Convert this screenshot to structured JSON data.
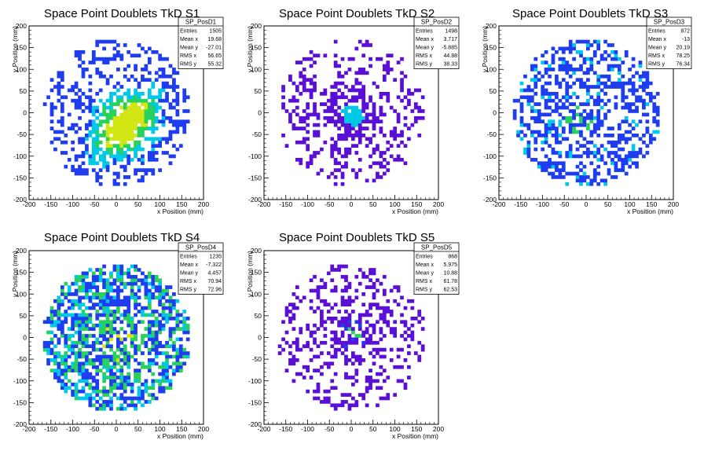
{
  "chart_data": [
    {
      "type": "heatmap",
      "title": "Space Point Doublets TkD S1",
      "xlabel": "x Position (mm)",
      "ylabel": "y Position (mm)",
      "xlim": [
        -200,
        200
      ],
      "ylim": [
        -200,
        200
      ],
      "xticks": [
        "-200",
        "-150",
        "-100",
        "-50",
        "0",
        "50",
        "100",
        "150",
        "200"
      ],
      "yticks": [
        "-200",
        "-150",
        "-100",
        "-50",
        "0",
        "50",
        "100",
        "150",
        "200"
      ],
      "pattern": "diagonal",
      "stats": {
        "name": "SP_PosD1",
        "rows": [
          [
            "Entries",
            "1505"
          ],
          [
            "Mean x",
            "19.68"
          ],
          [
            "Mean y",
            "-27.01"
          ],
          [
            "RMS x",
            "56.65"
          ],
          [
            "RMS y",
            "55.32"
          ]
        ]
      }
    },
    {
      "type": "heatmap",
      "title": "Space Point Doublets TkD S2",
      "xlabel": "x Position (mm)",
      "ylabel": "y Position (mm)",
      "xlim": [
        -200,
        200
      ],
      "ylim": [
        -200,
        200
      ],
      "xticks": [
        "-200",
        "-150",
        "-100",
        "-50",
        "0",
        "50",
        "100",
        "150",
        "200"
      ],
      "yticks": [
        "-200",
        "-150",
        "-100",
        "-50",
        "0",
        "50",
        "100",
        "150",
        "200"
      ],
      "pattern": "central",
      "stats": {
        "name": "SP_PosD2",
        "rows": [
          [
            "Entries",
            "1498"
          ],
          [
            "Mean x",
            "3.717"
          ],
          [
            "Mean y",
            "-5.885"
          ],
          [
            "RMS x",
            "44.88"
          ],
          [
            "RMS y",
            "38.33"
          ]
        ]
      }
    },
    {
      "type": "heatmap",
      "title": "Space Point Doublets TkD S3",
      "xlabel": "x Position (mm)",
      "ylabel": "y Position (mm)",
      "xlim": [
        -200,
        200
      ],
      "ylim": [
        -200,
        200
      ],
      "xticks": [
        "-200",
        "-150",
        "-100",
        "-50",
        "0",
        "50",
        "100",
        "150",
        "200"
      ],
      "yticks": [
        "-200",
        "-150",
        "-100",
        "-50",
        "0",
        "50",
        "100",
        "150",
        "200"
      ],
      "pattern": "wide",
      "stats": {
        "name": "SP_PosD3",
        "rows": [
          [
            "Entries",
            "872"
          ],
          [
            "Mean x",
            "-13"
          ],
          [
            "Mean y",
            "20.19"
          ],
          [
            "RMS x",
            "78.25"
          ],
          [
            "RMS y",
            "76.34"
          ]
        ]
      }
    },
    {
      "type": "heatmap",
      "title": "Space Point Doublets TkD S4",
      "xlabel": "x Position (mm)",
      "ylabel": "y Position (mm)",
      "xlim": [
        -200,
        200
      ],
      "ylim": [
        -200,
        200
      ],
      "xticks": [
        "-200",
        "-150",
        "-100",
        "-50",
        "0",
        "50",
        "100",
        "150",
        "200"
      ],
      "yticks": [
        "-200",
        "-150",
        "-100",
        "-50",
        "0",
        "50",
        "100",
        "150",
        "200"
      ],
      "pattern": "wide-dense",
      "stats": {
        "name": "SP_PosD4",
        "rows": [
          [
            "Entries",
            "1235"
          ],
          [
            "Mean x",
            "-7.322"
          ],
          [
            "Mean y",
            "4.457"
          ],
          [
            "RMS x",
            "70.94"
          ],
          [
            "RMS y",
            "72.96"
          ]
        ]
      }
    },
    {
      "type": "heatmap",
      "title": "Space Point Doublets TkD S5",
      "xlabel": "x Position (mm)",
      "ylabel": "y Position (mm)",
      "xlim": [
        -200,
        200
      ],
      "ylim": [
        -200,
        200
      ],
      "xticks": [
        "-200",
        "-150",
        "-100",
        "-50",
        "0",
        "50",
        "100",
        "150",
        "200"
      ],
      "yticks": [
        "-200",
        "-150",
        "-100",
        "-50",
        "0",
        "50",
        "100",
        "150",
        "200"
      ],
      "pattern": "central-sparse",
      "stats": {
        "name": "SP_PosD5",
        "rows": [
          [
            "Entries",
            "868"
          ],
          [
            "Mean x",
            "5.975"
          ],
          [
            "Mean y",
            "10.88"
          ],
          [
            "RMS x",
            "61.78"
          ],
          [
            "RMS y",
            "62.53"
          ]
        ]
      }
    }
  ],
  "colors": {
    "low": "#5a0fd6",
    "mid_low": "#1e3cf0",
    "mid": "#00c8e6",
    "mid_high": "#28d25a",
    "high": "#d2e614",
    "peak": "#ff1e00"
  }
}
